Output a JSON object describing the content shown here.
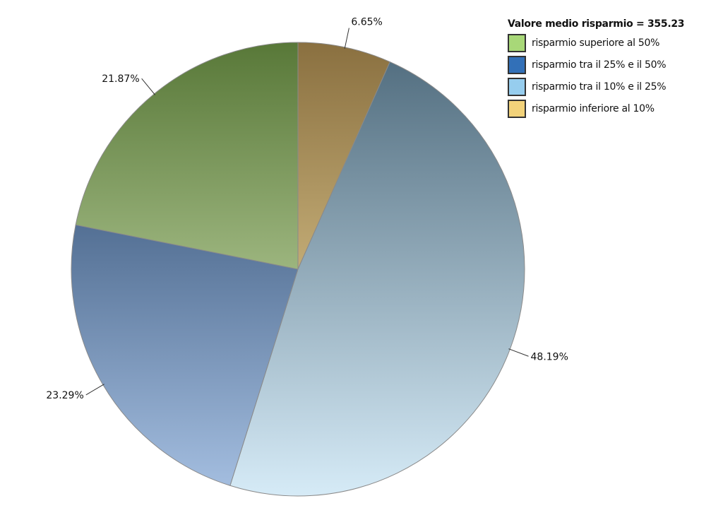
{
  "chart_data": {
    "type": "pie",
    "title": "",
    "legend_title": "Valore medio risparmio = 355.23",
    "legend_position": "top-right",
    "start_angle": "12 o'clock, clockwise",
    "slices": [
      {
        "name": "risparmio inferiore al 10%",
        "value": 6.65,
        "label": "6.65%",
        "color": "#f2d27a",
        "top": "#8a7040",
        "bottom": "#fae6aa"
      },
      {
        "name": "risparmio tra il 10% e il 25%",
        "value": 48.19,
        "label": "48.19%",
        "color": "#96cdee",
        "top": "#4e6a7c",
        "bottom": "#d6ebf7"
      },
      {
        "name": "risparmio tra il 25% e il 50%",
        "value": 23.29,
        "label": "23.29%",
        "color": "#3270b8",
        "top": "#1c3a60",
        "bottom": "#a6c0e2"
      },
      {
        "name": "risparmio superiore al 50%",
        "value": 21.87,
        "label": "21.87%",
        "color": "#a8d878",
        "top": "#587838",
        "bottom": "#e0f2c4"
      }
    ],
    "legend_order": [
      3,
      2,
      1,
      0
    ]
  }
}
